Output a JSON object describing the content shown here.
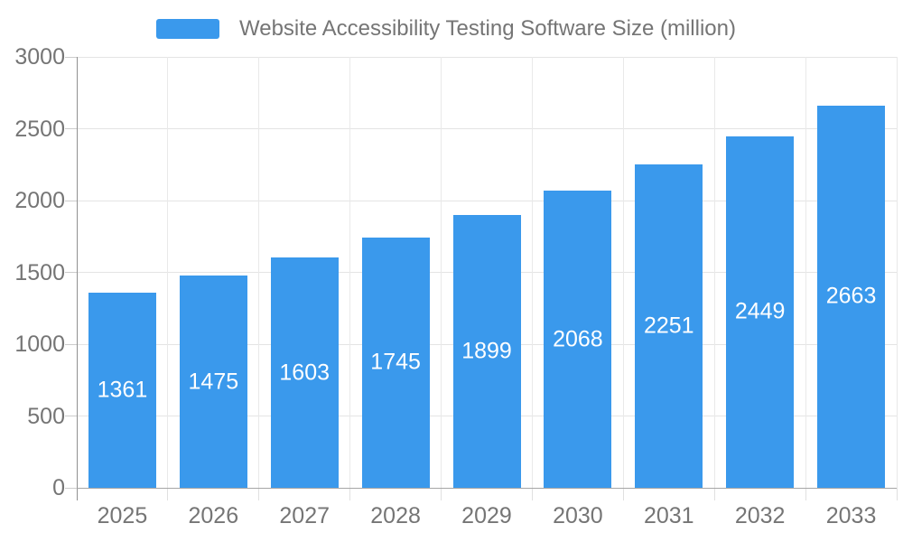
{
  "chart_data": {
    "type": "bar",
    "title": "Website Accessibility Testing Software Size (million)",
    "legend": [
      "Website Accessibility Testing Software Size (million)"
    ],
    "legend_position": "top",
    "categories": [
      "2025",
      "2026",
      "2027",
      "2028",
      "2029",
      "2030",
      "2031",
      "2032",
      "2033"
    ],
    "series": [
      {
        "name": "Website Accessibility Testing Software Size (million)",
        "values": [
          1361,
          1475,
          1603,
          1745,
          1899,
          2068,
          2251,
          2449,
          2663
        ]
      }
    ],
    "xlabel": "",
    "ylabel": "",
    "ylim": [
      0,
      3000
    ],
    "y_ticks": [
      0,
      500,
      1000,
      1500,
      2000,
      2500,
      3000
    ],
    "grid": true,
    "bar_labels_visible": true,
    "colors": {
      "bar": "#3A99EC",
      "bar_value_text": "#FFFFFF",
      "axis_text": "#757575",
      "legend_text": "#757575",
      "axis_line": "#999999",
      "grid_line": "#E4E4E4",
      "background": "#FFFFFF"
    }
  }
}
